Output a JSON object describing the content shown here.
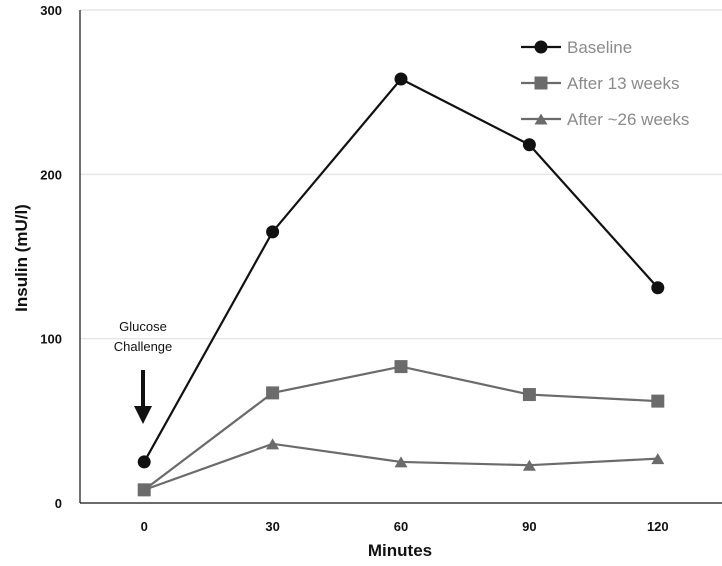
{
  "chart_data": {
    "type": "line",
    "title": "",
    "xlabel": "Minutes",
    "ylabel": "Insulin (mU/l)",
    "x": [
      0,
      30,
      60,
      90,
      120
    ],
    "x_tick_labels": [
      "0",
      "30",
      "60",
      "90",
      "120"
    ],
    "y_tick_labels": [
      "0",
      "100",
      "200",
      "300"
    ],
    "xlim": [
      -15,
      135
    ],
    "ylim": [
      0,
      300
    ],
    "grid": "horizontal",
    "legend_position": "top-right",
    "series": [
      {
        "name": "Baseline",
        "marker": "circle",
        "color": "#111111",
        "values": [
          25,
          165,
          258,
          218,
          131
        ]
      },
      {
        "name": "After 13 weeks",
        "marker": "square",
        "color": "#6b6b6b",
        "values": [
          8,
          67,
          83,
          66,
          62
        ]
      },
      {
        "name": "After ~26 weeks",
        "marker": "triangle",
        "color": "#6b6b6b",
        "values": [
          8,
          36,
          25,
          23,
          27
        ]
      }
    ],
    "annotation": {
      "lines": [
        "Glucose",
        "Challenge"
      ],
      "arrow": "down",
      "x": 0
    }
  }
}
